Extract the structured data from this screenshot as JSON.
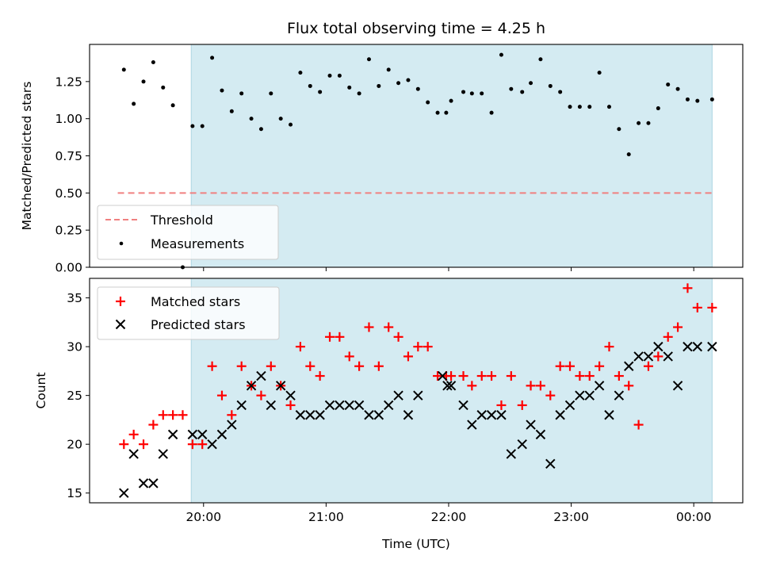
{
  "chart_data": [
    {
      "type": "scatter",
      "title": "Flux total observing time = 4.25 h",
      "xlabel": "",
      "ylabel": "Matched/Predicted stars",
      "x_unit": "hours UTC",
      "xlim": [
        19.07,
        24.4
      ],
      "ylim": [
        0.0,
        1.5
      ],
      "yticks": [
        0.0,
        0.25,
        0.5,
        0.75,
        1.0,
        1.25
      ],
      "ytick_labels": [
        "0.00",
        "0.25",
        "0.50",
        "0.75",
        "1.00",
        "1.25"
      ],
      "xticks": [
        20,
        21,
        22,
        23,
        24
      ],
      "shaded_region": {
        "x_start": 19.9,
        "x_end": 24.15,
        "color": "#d4ebf2"
      },
      "threshold": {
        "name": "Threshold",
        "value": 0.5,
        "x_start": 19.3,
        "x_end": 24.15,
        "color": "#f08080",
        "style": "dashed"
      },
      "legend": {
        "placement": "lower-left",
        "entries": [
          "Threshold",
          "Measurements"
        ]
      },
      "series": [
        {
          "name": "Measurements",
          "marker": "dot",
          "color": "#000000",
          "x": [
            19.35,
            19.43,
            19.51,
            19.59,
            19.67,
            19.75,
            19.83,
            19.91,
            19.99,
            20.07,
            20.15,
            20.23,
            20.31,
            20.39,
            20.47,
            20.55,
            20.63,
            20.71,
            20.79,
            20.87,
            20.95,
            21.03,
            21.11,
            21.19,
            21.27,
            21.35,
            21.43,
            21.51,
            21.59,
            21.67,
            21.75,
            21.83,
            21.91,
            21.98,
            22.02,
            22.12,
            22.19,
            22.27,
            22.35,
            22.43,
            22.51,
            22.6,
            22.67,
            22.75,
            22.83,
            22.91,
            22.99,
            23.07,
            23.15,
            23.23,
            23.31,
            23.39,
            23.47,
            23.55,
            23.63,
            23.71,
            23.79,
            23.87,
            23.95,
            24.03,
            24.15
          ],
          "y": [
            1.33,
            1.1,
            1.25,
            1.38,
            1.21,
            1.09,
            0.0,
            0.95,
            0.95,
            1.41,
            1.19,
            1.05,
            1.17,
            1.0,
            0.93,
            1.17,
            1.0,
            0.96,
            1.31,
            1.22,
            1.18,
            1.29,
            1.29,
            1.21,
            1.17,
            1.4,
            1.22,
            1.33,
            1.24,
            1.26,
            1.2,
            1.11,
            1.04,
            1.04,
            1.12,
            1.18,
            1.17,
            1.17,
            1.04,
            1.43,
            1.2,
            1.18,
            1.24,
            1.4,
            1.22,
            1.18,
            1.08,
            1.08,
            1.08,
            1.31,
            1.08,
            0.93,
            0.76,
            0.97,
            0.97,
            1.07,
            1.23,
            1.2,
            1.13,
            1.12,
            1.13
          ]
        }
      ]
    },
    {
      "type": "scatter",
      "title": "",
      "xlabel": "Time (UTC)",
      "ylabel": "Count",
      "x_unit": "hours UTC",
      "xlim": [
        19.07,
        24.4
      ],
      "ylim": [
        14,
        37
      ],
      "yticks": [
        15,
        20,
        25,
        30,
        35
      ],
      "ytick_labels": [
        "15",
        "20",
        "25",
        "30",
        "35"
      ],
      "xticks": [
        20,
        21,
        22,
        23,
        24
      ],
      "xtick_labels": [
        "20:00",
        "21:00",
        "22:00",
        "23:00",
        "00:00"
      ],
      "shaded_region": {
        "x_start": 19.9,
        "x_end": 24.15,
        "color": "#d4ebf2"
      },
      "legend": {
        "placement": "top-left",
        "entries": [
          "Matched stars",
          "Predicted stars"
        ]
      },
      "series": [
        {
          "name": "Matched stars",
          "marker": "plus",
          "color": "#ff0000",
          "x": [
            19.35,
            19.43,
            19.51,
            19.59,
            19.67,
            19.75,
            19.83,
            19.91,
            19.99,
            20.07,
            20.15,
            20.23,
            20.31,
            20.39,
            20.47,
            20.55,
            20.63,
            20.71,
            20.79,
            20.87,
            20.95,
            21.03,
            21.11,
            21.19,
            21.27,
            21.35,
            21.43,
            21.51,
            21.59,
            21.67,
            21.75,
            21.83,
            21.91,
            21.98,
            22.02,
            22.12,
            22.19,
            22.27,
            22.35,
            22.43,
            22.51,
            22.6,
            22.67,
            22.75,
            22.83,
            22.91,
            22.99,
            23.07,
            23.15,
            23.23,
            23.31,
            23.39,
            23.47,
            23.55,
            23.63,
            23.71,
            23.79,
            23.87,
            23.95,
            24.03,
            24.15
          ],
          "y": [
            20,
            21,
            20,
            22,
            23,
            23,
            23,
            20,
            20,
            28,
            25,
            23,
            28,
            26,
            25,
            28,
            26,
            24,
            30,
            28,
            27,
            31,
            31,
            29,
            28,
            32,
            28,
            32,
            31,
            29,
            30,
            30,
            27,
            27,
            27,
            27,
            26,
            27,
            27,
            24,
            27,
            24,
            26,
            26,
            25,
            28,
            28,
            27,
            27,
            28,
            30,
            27,
            26,
            22,
            28,
            29,
            31,
            32,
            36,
            34,
            34
          ]
        },
        {
          "name": "Predicted stars",
          "marker": "x",
          "color": "#000000",
          "x": [
            19.35,
            19.43,
            19.51,
            19.59,
            19.67,
            19.75,
            19.91,
            19.99,
            20.07,
            20.15,
            20.23,
            20.31,
            20.39,
            20.47,
            20.55,
            20.63,
            20.71,
            20.79,
            20.87,
            20.95,
            21.03,
            21.11,
            21.19,
            21.27,
            21.35,
            21.43,
            21.51,
            21.59,
            21.67,
            21.75,
            21.95,
            21.99,
            22.02,
            22.12,
            22.19,
            22.27,
            22.35,
            22.43,
            22.51,
            22.6,
            22.67,
            22.75,
            22.83,
            22.91,
            22.99,
            23.07,
            23.15,
            23.23,
            23.31,
            23.39,
            23.47,
            23.55,
            23.63,
            23.71,
            23.79,
            23.87,
            23.95,
            24.03,
            24.15
          ],
          "y": [
            15,
            19,
            16,
            16,
            19,
            21,
            21,
            21,
            20,
            21,
            22,
            24,
            26,
            27,
            24,
            26,
            25,
            23,
            23,
            23,
            24,
            24,
            24,
            24,
            23,
            23,
            24,
            25,
            23,
            25,
            27,
            26,
            26,
            24,
            22,
            23,
            23,
            23,
            19,
            20,
            22,
            21,
            18,
            23,
            24,
            25,
            25,
            26,
            23,
            25,
            28,
            29,
            29,
            30,
            29,
            26,
            30,
            30,
            30
          ]
        }
      ]
    }
  ]
}
